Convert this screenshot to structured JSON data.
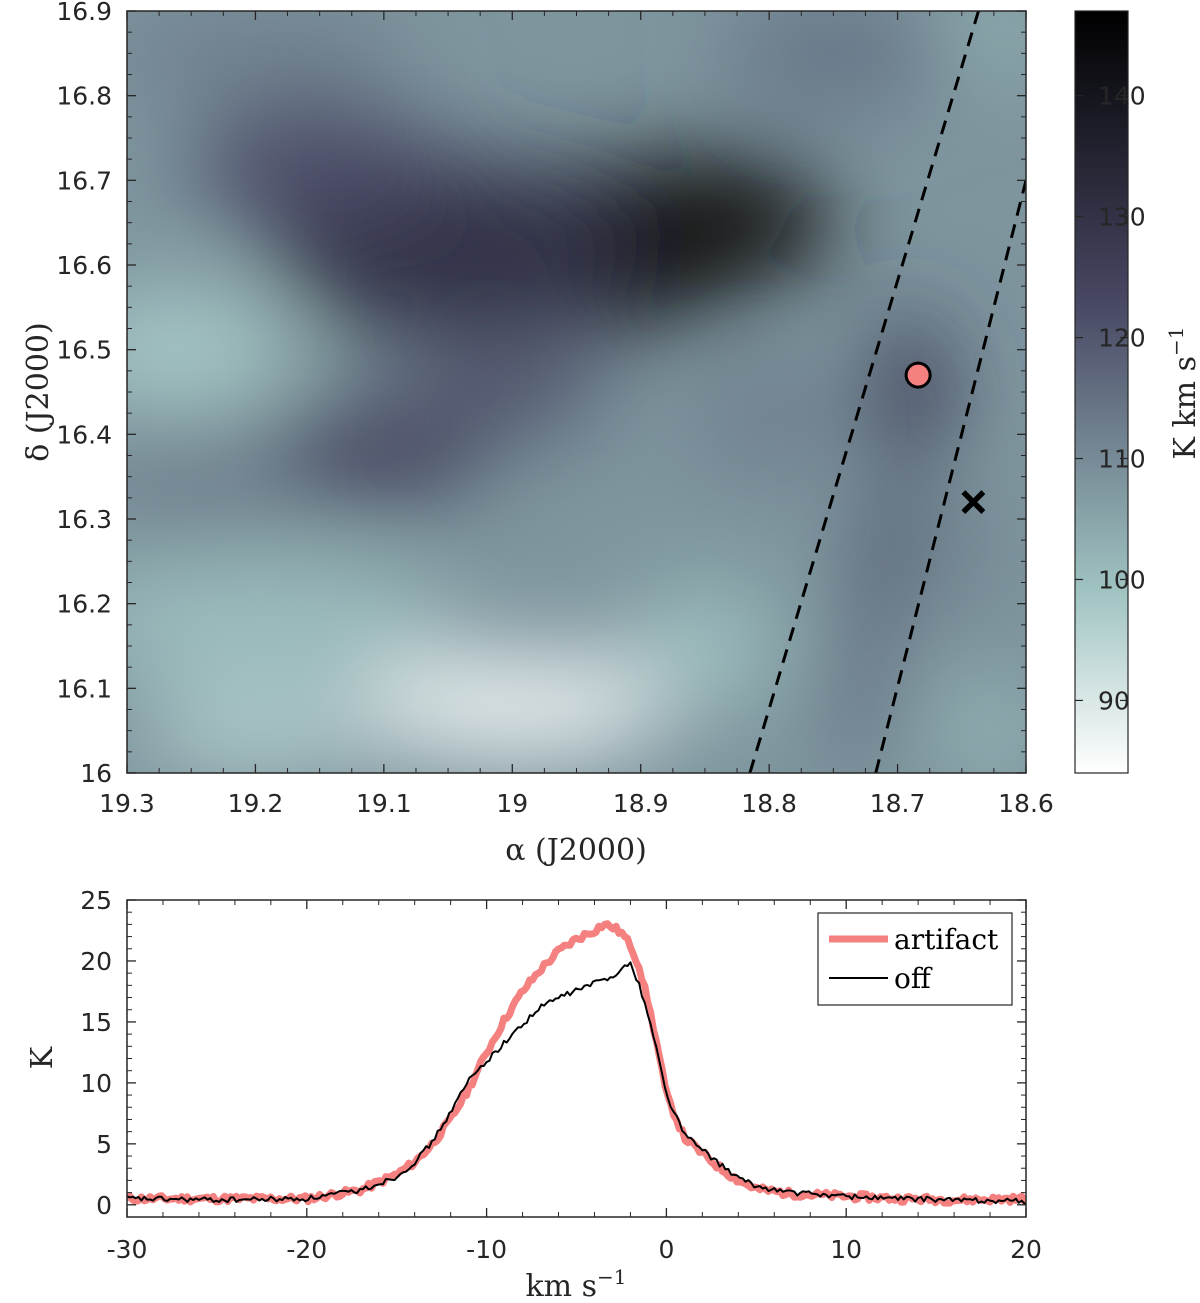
{
  "chart_data": [
    {
      "type": "heatmap",
      "title": "",
      "xlabel": "α (J2000)",
      "ylabel": "δ (J2000)",
      "xlim": [
        19.3,
        18.6
      ],
      "ylim": [
        16.0,
        16.9
      ],
      "x_ticks": [
        "19.3",
        "19.2",
        "19.1",
        "19",
        "18.9",
        "18.8",
        "18.7",
        "18.6"
      ],
      "y_ticks": [
        "16",
        "16.1",
        "16.2",
        "16.3",
        "16.4",
        "16.5",
        "16.6",
        "16.7",
        "16.8",
        "16.9"
      ],
      "colorbar": {
        "label": "K km s",
        "label_sup": "−1",
        "range": [
          84,
          147
        ],
        "ticks": [
          "90",
          "100",
          "110",
          "120",
          "130",
          "140"
        ],
        "colors": [
          "#ffffff",
          "#9fc3c1",
          "#474763",
          "#000000"
        ]
      },
      "intensity_features": [
        {
          "ra": 18.9,
          "dec": 16.63,
          "value": 146,
          "note": "peak"
        },
        {
          "ra": 19.0,
          "dec": 16.05,
          "value": 86,
          "note": "minimum"
        },
        {
          "ra": 19.25,
          "dec": 16.5,
          "value": 98
        },
        {
          "ra": 18.68,
          "dec": 16.45,
          "value": 124
        },
        {
          "ra": 18.7,
          "dec": 16.28,
          "value": 123
        },
        {
          "ra": 19.1,
          "dec": 16.35,
          "value": 121
        },
        {
          "ra": 18.62,
          "dec": 16.9,
          "value": 102
        }
      ],
      "dashed_lines": [
        {
          "from": [
            18.815,
            16.0
          ],
          "to": [
            18.637,
            16.9
          ]
        },
        {
          "from": [
            18.717,
            16.0
          ],
          "to": [
            18.6,
            16.7
          ]
        }
      ],
      "markers": [
        {
          "name": "artifact-position",
          "shape": "circle",
          "ra": 18.684,
          "dec": 16.47,
          "color": "#f58080"
        },
        {
          "name": "off-position",
          "shape": "x",
          "ra": 18.641,
          "dec": 16.32,
          "color": "#000000"
        }
      ]
    },
    {
      "type": "line",
      "title": "",
      "xlabel": "km s",
      "xlabel_sup": "−1",
      "ylabel": "K",
      "xlim": [
        -30,
        20
      ],
      "ylim": [
        -1,
        25
      ],
      "x_ticks": [
        "-30",
        "-20",
        "-10",
        "0",
        "10",
        "20"
      ],
      "y_ticks": [
        "0",
        "5",
        "10",
        "15",
        "20",
        "25"
      ],
      "legend_position": "top-right",
      "series": [
        {
          "name": "artifact",
          "color": "#f58080",
          "x": [
            -30,
            -25,
            -20,
            -17,
            -15,
            -14,
            -13,
            -12,
            -11,
            -10,
            -9,
            -8,
            -7,
            -6,
            -5,
            -4,
            -3.5,
            -3,
            -2.5,
            -2,
            -1.5,
            -1,
            -0.5,
            0,
            1,
            2,
            3,
            4,
            5,
            7,
            10,
            13,
            16,
            20
          ],
          "y": [
            0.5,
            0.5,
            0.5,
            1.2,
            2.5,
            3.5,
            5.0,
            7.0,
            9.5,
            12.5,
            15.2,
            17.5,
            19.3,
            20.8,
            21.8,
            22.5,
            23.0,
            22.8,
            22.3,
            21.3,
            19.5,
            16.5,
            13.0,
            9.0,
            5.5,
            4.2,
            3.0,
            2.0,
            1.3,
            0.9,
            0.7,
            0.5,
            0.4,
            0.5
          ]
        },
        {
          "name": "off",
          "color": "#000000",
          "x": [
            -30,
            -25,
            -20,
            -17,
            -15,
            -14,
            -13,
            -12,
            -11,
            -10,
            -9,
            -8,
            -7,
            -6,
            -5,
            -4,
            -3,
            -2.5,
            -2,
            -1.5,
            -1,
            -0.5,
            0,
            1,
            2,
            3,
            4,
            5,
            7,
            10,
            13,
            16,
            20
          ],
          "y": [
            0.5,
            0.4,
            0.5,
            1.2,
            2.3,
            3.5,
            5.2,
            7.6,
            10.2,
            11.8,
            13.3,
            14.8,
            16.2,
            17.0,
            17.6,
            18.2,
            18.7,
            19.5,
            19.7,
            18.0,
            15.5,
            12.5,
            9.0,
            5.8,
            4.5,
            3.3,
            2.2,
            1.5,
            1.0,
            0.7,
            0.5,
            0.4,
            0.3
          ]
        }
      ]
    }
  ]
}
